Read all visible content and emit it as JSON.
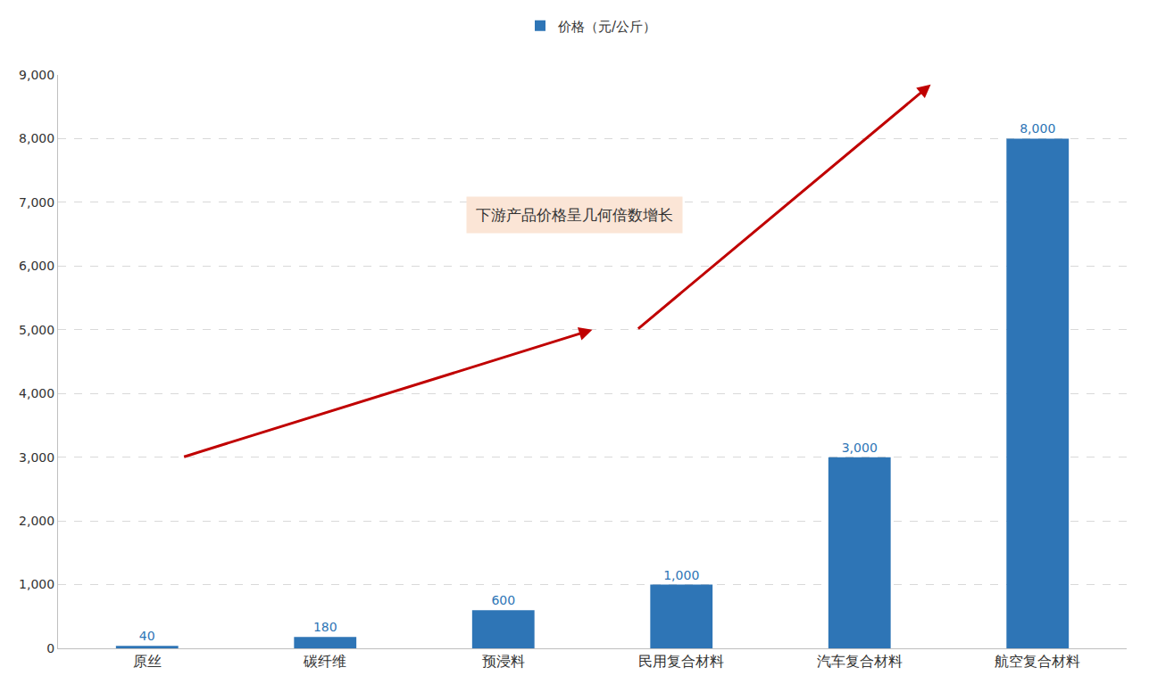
{
  "chart_data": {
    "type": "bar",
    "categories": [
      "原丝",
      "碳纤维",
      "预浸料",
      "民用复合材料",
      "汽车复合材料",
      "航空复合材料"
    ],
    "series": [
      {
        "name": "价格（元/公斤）",
        "color": "#2e75b6",
        "values": [
          40,
          180,
          600,
          1000,
          3000,
          8000
        ],
        "value_labels": [
          "40",
          "180",
          "600",
          "1,000",
          "3,000",
          "8,000"
        ]
      }
    ],
    "ylim": [
      0,
      9000
    ],
    "yticks": [
      0,
      {
        "value": 1000,
        "label": "1,000"
      },
      {
        "value": 2000,
        "label": "2,000"
      },
      {
        "value": 3000,
        "label": "3,000"
      },
      {
        "value": 4000,
        "label": "4,000"
      },
      {
        "value": 5000,
        "label": "5,000"
      },
      {
        "value": 6000,
        "label": "6,000"
      },
      {
        "value": 7000,
        "label": "7,000"
      },
      {
        "value": 8000,
        "label": "8,000"
      },
      {
        "value": 9000,
        "label": "9,000"
      }
    ],
    "annotations": [
      "下游产品价格呈几何倍数增长"
    ],
    "grid": true,
    "legend": "top",
    "data_labels": true
  }
}
